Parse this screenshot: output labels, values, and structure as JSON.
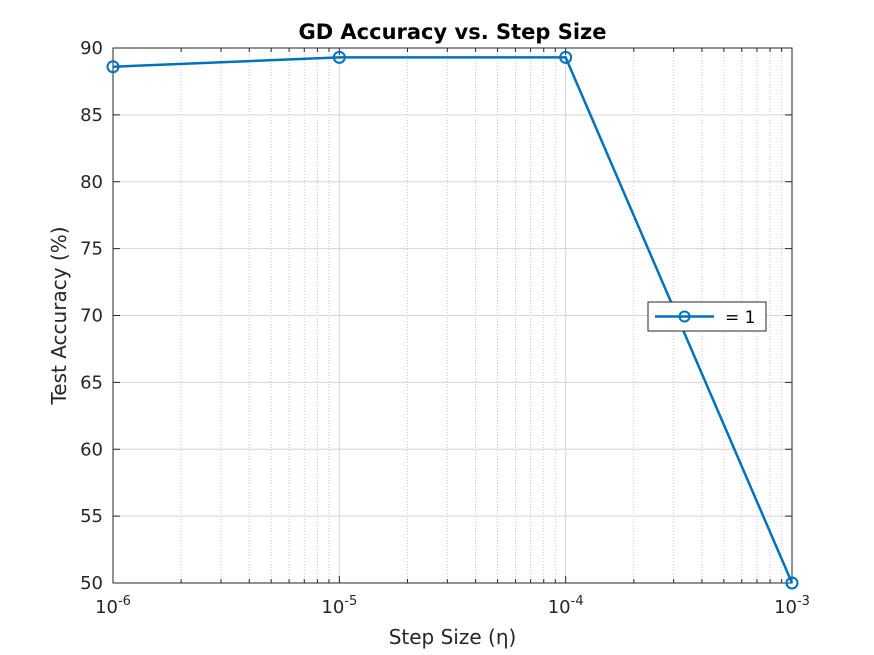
{
  "chart_data": {
    "type": "line",
    "title": "GD Accuracy vs. Step Size",
    "xlabel": "Step Size (η)",
    "ylabel": "Test Accuracy (%)",
    "x_scale": "log",
    "xlim": [
      1e-06,
      0.001
    ],
    "ylim": [
      50,
      90
    ],
    "grid": true,
    "minor_grid": true,
    "x_ticks": [
      {
        "base": "10",
        "exp": "-6"
      },
      {
        "base": "10",
        "exp": "-5"
      },
      {
        "base": "10",
        "exp": "-4"
      },
      {
        "base": "10",
        "exp": "-3"
      }
    ],
    "y_ticks": [
      "50",
      "55",
      "60",
      "65",
      "70",
      "75",
      "80",
      "85",
      "90"
    ],
    "series": [
      {
        "name": "= 1",
        "color": "#0072BD",
        "marker": "circle",
        "x": [
          1e-06,
          1e-05,
          0.0001,
          0.001
        ],
        "y": [
          88.6,
          89.3,
          89.3,
          50.0
        ]
      }
    ],
    "legend_position": "right"
  }
}
